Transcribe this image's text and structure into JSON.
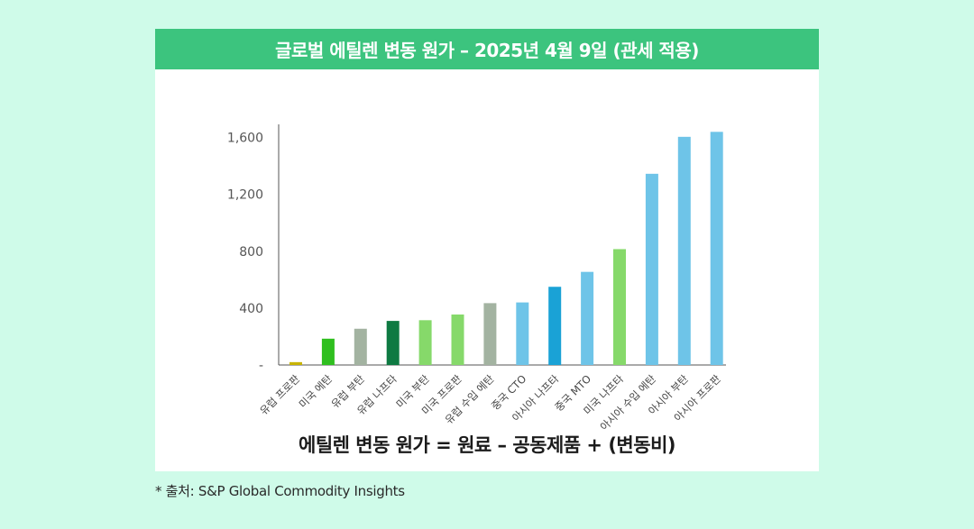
{
  "title": "글로벌 에틸렌 변동 원가 – 2025년 4월 9일 (관세 적용)",
  "formula": "에틸렌 변동 원가 = 원료 – 공동제품 + (변동비)",
  "source": "* 출처: S&P Global Commodity Insights",
  "chart_data": {
    "type": "bar",
    "categories": [
      "유럽 프로판",
      "미국 에탄",
      "유럽 부탄",
      "유럽 나프타",
      "미국 부탄",
      "미국 프로판",
      "유럽 수입 에탄",
      "중국 CTO",
      "아시아 나프타",
      "중국 MTO",
      "미국 나프타",
      "아시아 수입 에탄",
      "아시아 부탄",
      "아시아 프로판"
    ],
    "values": [
      20,
      185,
      255,
      310,
      315,
      355,
      435,
      440,
      550,
      655,
      815,
      1345,
      1605,
      1640
    ],
    "colors": [
      "#c8b400",
      "#2fbf1f",
      "#a3b3a1",
      "#0e7a42",
      "#86d96a",
      "#86d96a",
      "#a3b3a1",
      "#6ec4e8",
      "#1aa2d6",
      "#6ec4e8",
      "#86d96a",
      "#6ec4e8",
      "#6ec4e8",
      "#6ec4e8"
    ],
    "yticks": [
      0,
      400,
      800,
      1200,
      1600
    ],
    "ytick_labels": [
      "-",
      "400",
      "800",
      "1,200",
      "1,600"
    ],
    "ylim": [
      0,
      1680
    ],
    "grid": false
  }
}
